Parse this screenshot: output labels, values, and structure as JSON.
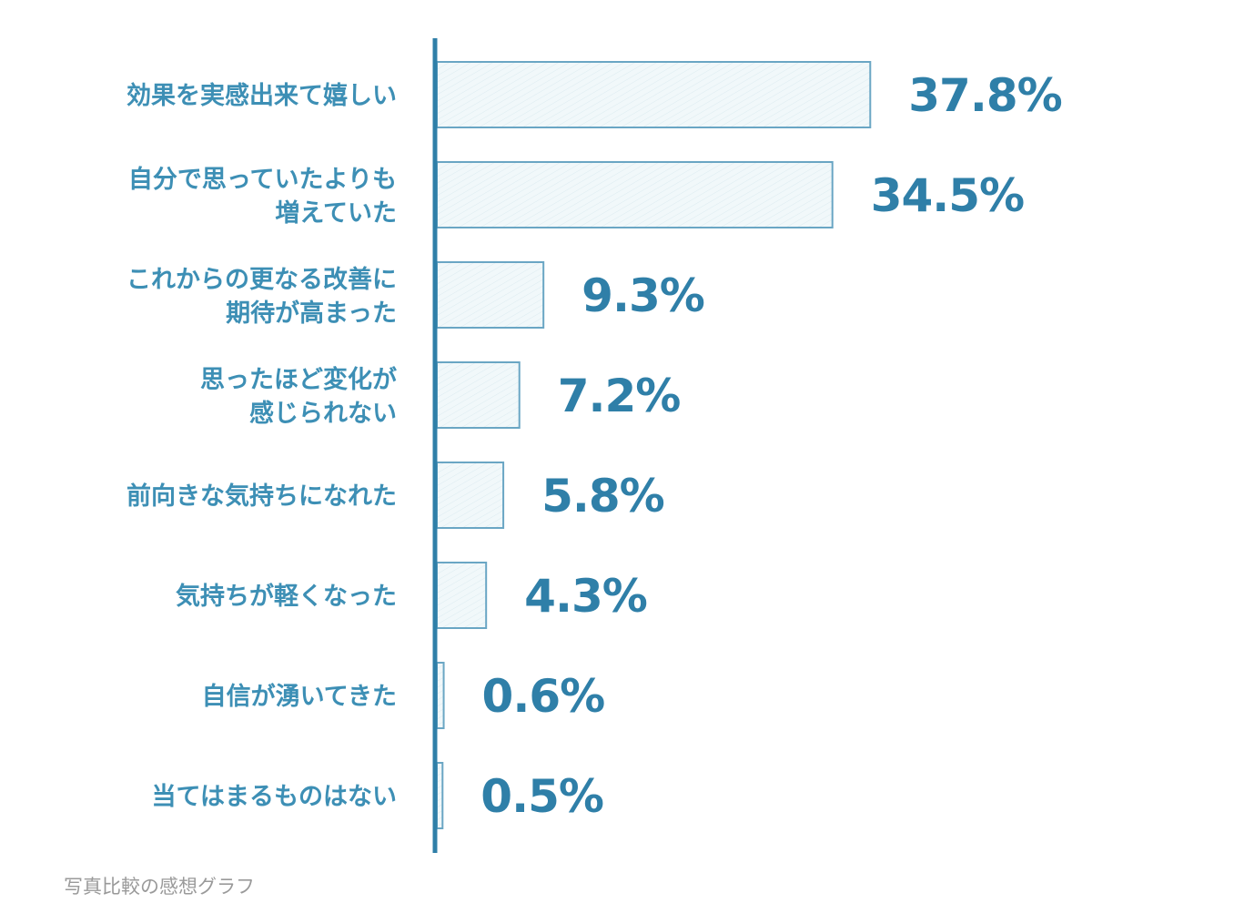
{
  "chart_data": {
    "type": "bar",
    "orientation": "horizontal",
    "title": "",
    "xlabel": "",
    "ylabel": "",
    "unit": "%",
    "categories": [
      [
        "効果を実感出来て嬉しい"
      ],
      [
        "自分で思っていたよりも",
        "増えていた"
      ],
      [
        "これからの更なる改善に",
        "期待が高まった"
      ],
      [
        "思ったほど変化が",
        "感じられない"
      ],
      [
        "前向きな気持ちになれた"
      ],
      [
        "気持ちが軽くなった"
      ],
      [
        "自信が湧いてきた"
      ],
      [
        "当てはまるものはない"
      ]
    ],
    "values": [
      37.8,
      34.5,
      9.3,
      7.2,
      5.8,
      4.3,
      0.6,
      0.5
    ],
    "value_labels": [
      "37.8%",
      "34.5%",
      "9.3%",
      "7.2%",
      "5.8%",
      "4.3%",
      "0.6%",
      "0.5%"
    ],
    "xlim": [
      0,
      40
    ],
    "grid": false,
    "colors": {
      "axis": "#2f7fa8",
      "bar_fill": "#eef7f9",
      "bar_stroke": "#6aa6c4"
    }
  },
  "caption": "写真比較の感想グラフ"
}
